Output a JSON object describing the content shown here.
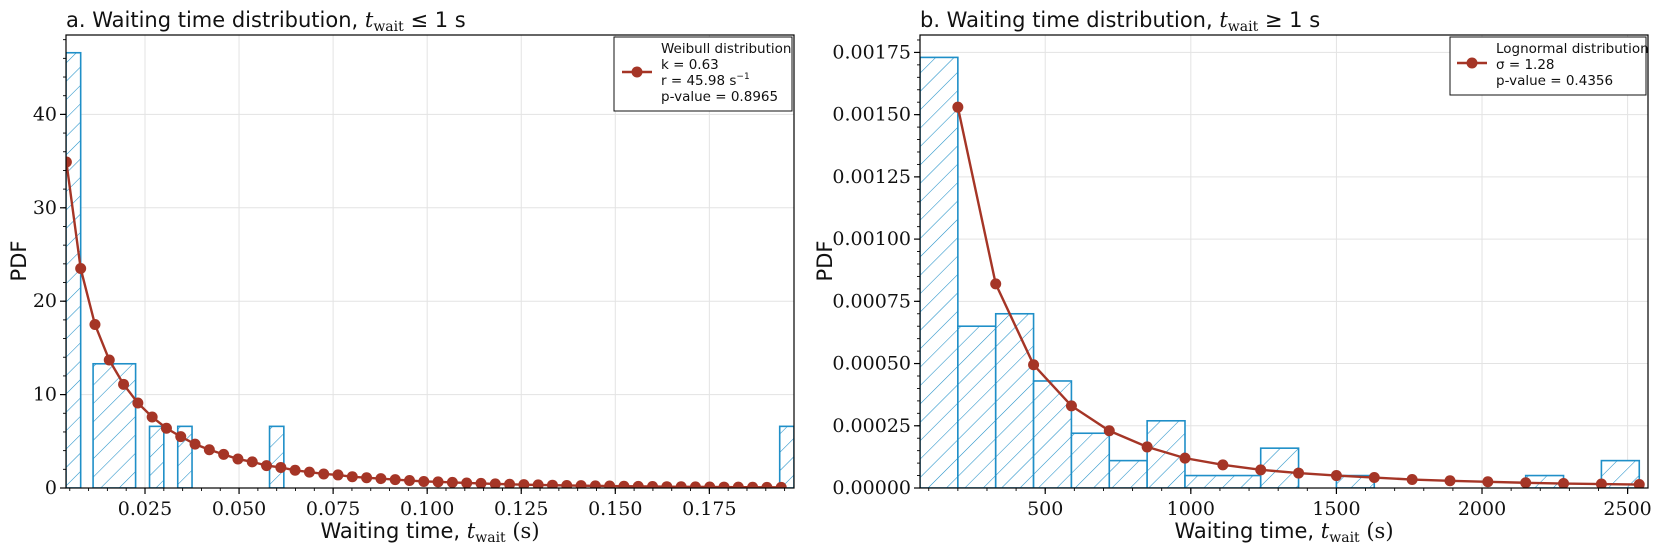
{
  "chart_data": [
    {
      "type": "bar",
      "panel": "a",
      "title": "a. Waiting time distribution, t_wait ≤ 1 s",
      "title_prefix": "a. Waiting time distribution, ",
      "title_math": "t",
      "title_sub": "wait",
      "title_suffix": " ≤ 1 s",
      "xlabel": "Waiting time, t_wait (s)",
      "xlabel_text": "Waiting time, ",
      "ylabel": "PDF",
      "xlim": [
        0.004,
        0.1975
      ],
      "ylim": [
        0,
        48.5
      ],
      "xticks": [
        0.025,
        0.05,
        0.075,
        0.1,
        0.125,
        0.15,
        0.175
      ],
      "xtick_labels": [
        "0.025",
        "0.050",
        "0.075",
        "0.100",
        "0.125",
        "0.150",
        "0.175"
      ],
      "yticks": [
        0,
        10,
        20,
        30,
        40
      ],
      "ytick_labels": [
        "0",
        "10",
        "20",
        "30",
        "40"
      ],
      "grid": true,
      "legend_position": "top-right",
      "histogram": {
        "color": "#1f8fc8",
        "bins": [
          {
            "x0": 0.004,
            "x1": 0.0079,
            "value": 46.6
          },
          {
            "x0": 0.0112,
            "x1": 0.0225,
            "value": 13.3
          },
          {
            "x0": 0.0262,
            "x1": 0.03,
            "value": 6.6
          },
          {
            "x0": 0.0337,
            "x1": 0.0375,
            "value": 6.6
          },
          {
            "x0": 0.0581,
            "x1": 0.0619,
            "value": 6.6
          },
          {
            "x0": 0.1937,
            "x1": 0.1975,
            "value": 6.6
          }
        ]
      },
      "fit_series": {
        "name": "Weibull distribution",
        "color": "#a53526",
        "x": [
          0.0041,
          0.0079,
          0.0117,
          0.0155,
          0.0193,
          0.0231,
          0.0269,
          0.0307,
          0.0345,
          0.0383,
          0.0421,
          0.0459,
          0.0497,
          0.0535,
          0.0573,
          0.0611,
          0.0649,
          0.0687,
          0.0725,
          0.0763,
          0.0801,
          0.0839,
          0.0877,
          0.0915,
          0.0953,
          0.0991,
          0.1029,
          0.1067,
          0.1105,
          0.1143,
          0.1181,
          0.1219,
          0.1257,
          0.1295,
          0.1333,
          0.1371,
          0.1409,
          0.1447,
          0.1485,
          0.1523,
          0.1561,
          0.1599,
          0.1637,
          0.1675,
          0.1713,
          0.1751,
          0.1789,
          0.1827,
          0.1865,
          0.1903,
          0.1941
        ],
        "y": [
          34.9,
          23.5,
          17.5,
          13.7,
          11.1,
          9.1,
          7.6,
          6.4,
          5.5,
          4.7,
          4.1,
          3.6,
          3.1,
          2.8,
          2.4,
          2.2,
          1.9,
          1.7,
          1.5,
          1.4,
          1.2,
          1.1,
          1.0,
          0.9,
          0.8,
          0.7,
          0.66,
          0.6,
          0.54,
          0.49,
          0.44,
          0.4,
          0.36,
          0.33,
          0.3,
          0.27,
          0.25,
          0.23,
          0.21,
          0.19,
          0.17,
          0.16,
          0.14,
          0.13,
          0.12,
          0.11,
          0.1,
          0.09,
          0.08,
          0.07,
          0.07
        ]
      },
      "legend": {
        "title": "Weibull distribution",
        "lines": [
          "k = 0.63",
          "r = 45.98 s",
          "p-value = 0.8965"
        ],
        "r_unit_exponent": "−1"
      }
    },
    {
      "type": "bar",
      "panel": "b",
      "title": "b. Waiting time distribution, t_wait ≥ 1 s",
      "title_prefix": "b. Waiting time distribution, ",
      "title_math": "t",
      "title_sub": "wait",
      "title_suffix": " ≥ 1 s",
      "xlabel": "Waiting time, t_wait (s)",
      "xlabel_text": "Waiting time, ",
      "ylabel": "PDF",
      "xlim": [
        70,
        2570
      ],
      "ylim": [
        0,
        0.00182
      ],
      "xticks": [
        500,
        1000,
        1500,
        2000,
        2500
      ],
      "xtick_labels": [
        "500",
        "1000",
        "1500",
        "2000",
        "2500"
      ],
      "yticks": [
        0,
        0.00025,
        0.0005,
        0.00075,
        0.001,
        0.00125,
        0.0015,
        0.00175
      ],
      "ytick_labels": [
        "0.00000",
        "0.00025",
        "0.00050",
        "0.00075",
        "0.00100",
        "0.00125",
        "0.00150",
        "0.00175"
      ],
      "grid": true,
      "legend_position": "top-right",
      "histogram": {
        "color": "#1f8fc8",
        "bins": [
          {
            "x0": 70,
            "x1": 200,
            "value": 0.00173
          },
          {
            "x0": 200,
            "x1": 330,
            "value": 0.00065
          },
          {
            "x0": 330,
            "x1": 460,
            "value": 0.0007
          },
          {
            "x0": 460,
            "x1": 590,
            "value": 0.00043
          },
          {
            "x0": 590,
            "x1": 720,
            "value": 0.00022
          },
          {
            "x0": 720,
            "x1": 850,
            "value": 0.00011
          },
          {
            "x0": 850,
            "x1": 980,
            "value": 0.00027
          },
          {
            "x0": 980,
            "x1": 1240,
            "value": 5e-05
          },
          {
            "x0": 1240,
            "x1": 1370,
            "value": 0.00016
          },
          {
            "x0": 1500,
            "x1": 1630,
            "value": 5e-05
          },
          {
            "x0": 2150,
            "x1": 2280,
            "value": 5e-05
          },
          {
            "x0": 2410,
            "x1": 2540,
            "value": 0.00011
          }
        ]
      },
      "fit_series": {
        "name": "Lognormal distribution",
        "color": "#a53526",
        "x": [
          200,
          330,
          460,
          590,
          720,
          850,
          980,
          1110,
          1240,
          1370,
          1500,
          1630,
          1760,
          1890,
          2020,
          2150,
          2280,
          2410,
          2540
        ],
        "y": [
          0.00153,
          0.00082,
          0.000495,
          0.00033,
          0.00023,
          0.000165,
          0.00012,
          9.3e-05,
          7.3e-05,
          6e-05,
          5e-05,
          4.2e-05,
          3.4e-05,
          2.9e-05,
          2.5e-05,
          2.1e-05,
          1.8e-05,
          1.6e-05,
          1.4e-05
        ]
      },
      "legend": {
        "title": "Lognormal distribution",
        "lines": [
          "σ = 1.28",
          "p-value = 0.4356"
        ]
      }
    }
  ]
}
